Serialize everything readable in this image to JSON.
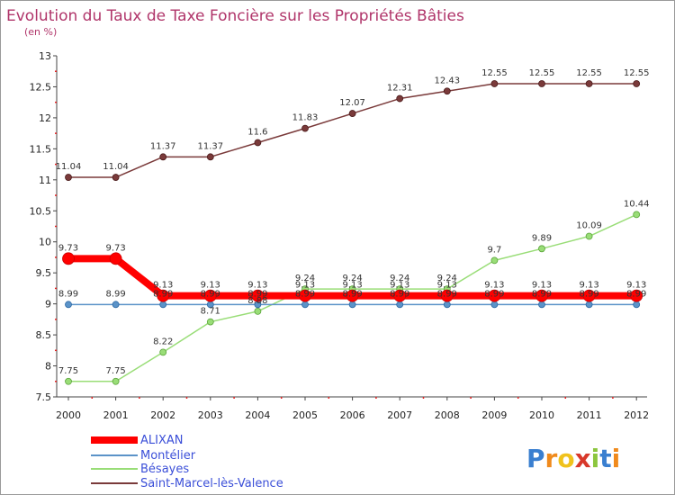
{
  "chart_data": {
    "type": "line",
    "title": "Evolution du Taux de Taxe Foncière sur les Propriétés Bâties",
    "subtitle": "(en %)",
    "xlabel": "",
    "ylabel": "",
    "x": [
      "2000",
      "2001",
      "2002",
      "2003",
      "2004",
      "2005",
      "2006",
      "2007",
      "2008",
      "2009",
      "2010",
      "2011",
      "2012"
    ],
    "ylim": [
      7.5,
      13
    ],
    "yticks": [
      "7.5",
      "8",
      "8.5",
      "9",
      "9.5",
      "10",
      "10.5",
      "11",
      "11.5",
      "12",
      "12.5",
      "13"
    ],
    "grid": false,
    "legend": "bottom-left",
    "series": [
      {
        "name": "ALIXAN",
        "color": "#ff0000",
        "values": [
          9.73,
          9.73,
          9.13,
          9.13,
          9.13,
          9.13,
          9.13,
          9.13,
          9.13,
          9.13,
          9.13,
          9.13,
          9.13
        ],
        "labels": [
          "9.73",
          "9.73",
          "9.13",
          "9.13",
          "9.13",
          "9.13",
          "9.13",
          "9.13",
          "9.13",
          "9.13",
          "9.13",
          "9.13",
          "9.13"
        ]
      },
      {
        "name": "Montélier",
        "color": "#5b93c8",
        "values": [
          8.99,
          8.99,
          8.99,
          8.99,
          8.99,
          8.99,
          8.99,
          8.99,
          8.99,
          8.99,
          8.99,
          8.99,
          8.99
        ],
        "labels": [
          "8.99",
          "8.99",
          "8.99",
          "8.99",
          "8.99",
          "8.99",
          "8.99",
          "8.99",
          "8.99",
          "8.99",
          "8.99",
          "8.99",
          "8.99"
        ]
      },
      {
        "name": "Bésayes",
        "color": "#99dd77",
        "values": [
          7.75,
          7.75,
          8.22,
          8.71,
          8.88,
          9.24,
          9.24,
          9.24,
          9.24,
          9.7,
          9.89,
          10.09,
          10.44
        ],
        "labels": [
          "7.75",
          "7.75",
          "8.22",
          "8.71",
          "8.88",
          "9.24",
          "9.24",
          "9.24",
          "9.24",
          "9.7",
          "9.89",
          "10.09",
          "10.44"
        ]
      },
      {
        "name": "Saint-Marcel-lès-Valence",
        "color": "#7a3a3a",
        "values": [
          11.04,
          11.04,
          11.37,
          11.37,
          11.6,
          11.83,
          12.07,
          12.31,
          12.43,
          12.55,
          12.55,
          12.55,
          12.55
        ],
        "labels": [
          "11.04",
          "11.04",
          "11.37",
          "11.37",
          "11.6",
          "11.83",
          "12.07",
          "12.31",
          "12.43",
          "12.55",
          "12.55",
          "12.55",
          "12.55"
        ]
      }
    ]
  },
  "logo": {
    "letters": [
      "P",
      "r",
      "o",
      "x",
      "i",
      "t",
      "i"
    ],
    "colors": [
      "#3a7fd0",
      "#f08a1c",
      "#f0c21c",
      "#d8382a",
      "#8cc63e",
      "#3a7fd0",
      "#f08a1c"
    ]
  }
}
